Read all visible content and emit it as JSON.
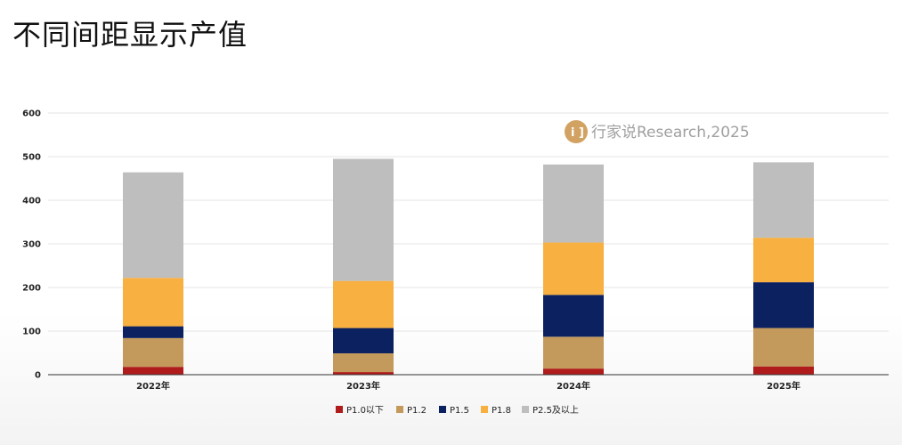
{
  "title": "不同间距显示产值",
  "watermark": "行家说Research,2025",
  "chart_data": {
    "type": "bar",
    "stacked": true,
    "categories": [
      "2022年",
      "2023年",
      "2024年",
      "2025年"
    ],
    "ylim": [
      0,
      600
    ],
    "yticks": [
      0,
      100,
      200,
      300,
      400,
      500,
      600
    ],
    "grid": true,
    "legend_position": "bottom",
    "series": [
      {
        "name": "P1.0以下",
        "color": "#b01c1c",
        "values": [
          18,
          6,
          14,
          19
        ]
      },
      {
        "name": "P1.2",
        "color": "#c49a5c",
        "values": [
          66,
          43,
          73,
          88
        ]
      },
      {
        "name": "P1.5",
        "color": "#0c2160",
        "values": [
          27,
          58,
          96,
          105
        ]
      },
      {
        "name": "P1.8",
        "color": "#f8b040",
        "values": [
          111,
          108,
          120,
          102
        ]
      },
      {
        "name": "P2.5及以上",
        "color": "#bebebe",
        "values": [
          242,
          280,
          179,
          173
        ]
      }
    ]
  }
}
